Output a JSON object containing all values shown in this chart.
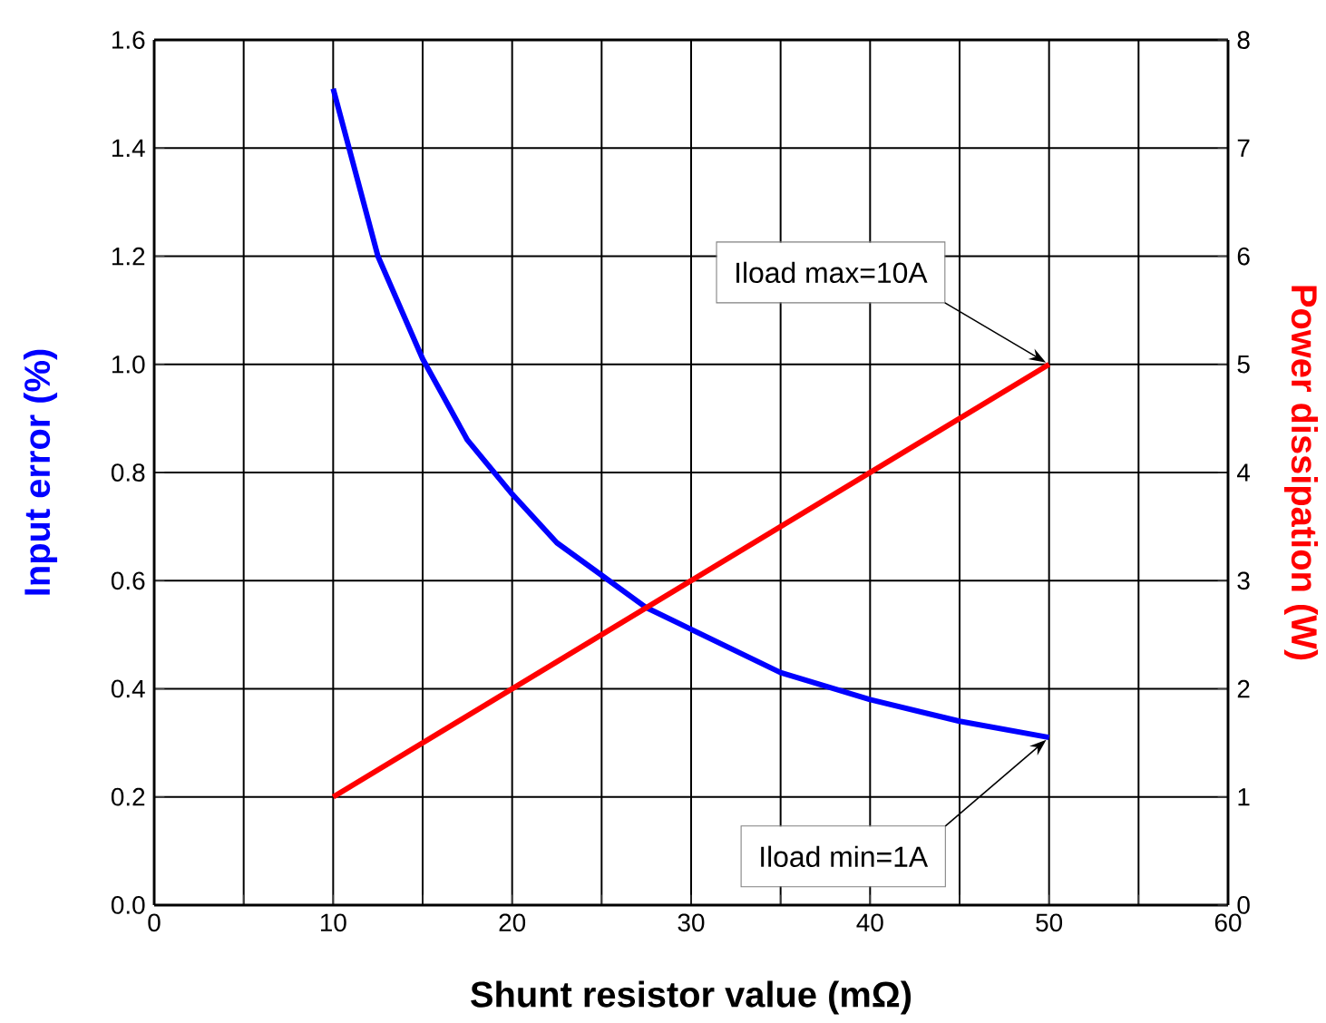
{
  "chart_data": {
    "type": "line",
    "xlabel": "Shunt resistor value (mΩ)",
    "ylabel": "Input error (%)",
    "y2label": "Power dissipation (W)",
    "xlim": [
      0,
      60
    ],
    "xticks": [
      0,
      {
        "value": 5,
        "label": null
      },
      10,
      {
        "value": 15,
        "label": null
      },
      20,
      {
        "value": 25,
        "label": null
      },
      30,
      {
        "value": 35,
        "label": null
      },
      40,
      {
        "value": 45,
        "label": null
      },
      50,
      {
        "value": 55,
        "label": null
      },
      60
    ],
    "ylim": [
      0,
      1.6
    ],
    "yticks": [
      {
        "value": 0,
        "label": "0.0"
      },
      0.2,
      0.4,
      0.6,
      0.8,
      {
        "value": 1,
        "label": "1.0"
      },
      1.2,
      1.4,
      1.6
    ],
    "y2lim": [
      0,
      8
    ],
    "y2ticks": [
      0,
      1,
      2,
      3,
      4,
      5,
      6,
      7,
      8
    ],
    "grid": true,
    "marker": "none",
    "line_style": "solid",
    "series": [
      {
        "color": "#0000ff",
        "x": [
          10,
          12.5,
          15,
          17.5,
          20,
          22.5,
          25,
          27.5,
          30,
          35,
          40,
          45,
          50
        ],
        "values": [
          1.51,
          1.2,
          1.01,
          0.86,
          0.76,
          0.67,
          0.61,
          0.55,
          0.51,
          0.43,
          0.38,
          0.34,
          0.31
        ]
      },
      {
        "color": "#ff0000",
        "axis": "y2",
        "x": [
          10,
          50
        ],
        "values": [
          1,
          5
        ]
      }
    ],
    "annotations": [
      {
        "text": "Iload max=10A",
        "x": 50,
        "y": 1.0
      },
      {
        "text": "Iload min=1A",
        "x": 50,
        "y": 0.31
      }
    ]
  }
}
